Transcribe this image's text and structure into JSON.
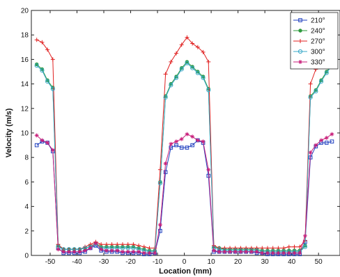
{
  "chart_data": {
    "type": "line",
    "title": "",
    "xlabel": "Location (mm)",
    "ylabel": "Velocity (m/s)",
    "xlim": [
      -57,
      58
    ],
    "ylim": [
      0,
      20
    ],
    "x_ticks": [
      -50,
      -40,
      -30,
      -20,
      -10,
      0,
      10,
      20,
      30,
      40,
      50
    ],
    "y_ticks": [
      0,
      2,
      4,
      6,
      8,
      10,
      12,
      14,
      16,
      18,
      20
    ],
    "legend_position": "top-right",
    "grid": false,
    "x": [
      -55,
      -53,
      -51,
      -49,
      -47,
      -45,
      -43,
      -41,
      -39,
      -37,
      -35,
      -33,
      -31,
      -29,
      -27,
      -25,
      -23,
      -21,
      -19,
      -17,
      -15,
      -13,
      -11,
      -9,
      -7,
      -5,
      -3,
      -1,
      1,
      3,
      5,
      7,
      9,
      11,
      13,
      15,
      17,
      19,
      21,
      23,
      25,
      27,
      29,
      31,
      33,
      35,
      37,
      39,
      41,
      43,
      45,
      47,
      49,
      51,
      53,
      55
    ],
    "series": [
      {
        "name": "210°",
        "color": "#1f3fbf",
        "marker": "square",
        "values": [
          9.0,
          9.3,
          9.2,
          8.5,
          0.6,
          0.2,
          0.2,
          0.2,
          0.2,
          0.3,
          0.6,
          0.8,
          0.4,
          0.3,
          0.3,
          0.3,
          0.2,
          0.2,
          0.2,
          0.2,
          0.1,
          0.1,
          0.2,
          2.0,
          6.8,
          8.8,
          9.0,
          8.8,
          8.8,
          9.0,
          9.4,
          9.2,
          6.5,
          0.3,
          0.3,
          0.3,
          0.3,
          0.3,
          0.3,
          0.3,
          0.3,
          0.2,
          0.2,
          0.1,
          0.1,
          0.1,
          0.1,
          0.1,
          0.1,
          0.1,
          1.1,
          8.0,
          8.9,
          9.2,
          9.2,
          9.3
        ]
      },
      {
        "name": "240°",
        "color": "#2e9a3e",
        "marker": "dot",
        "values": [
          15.6,
          15.2,
          14.3,
          13.7,
          0.8,
          0.5,
          0.5,
          0.5,
          0.5,
          0.6,
          0.7,
          1.0,
          0.7,
          0.7,
          0.7,
          0.7,
          0.7,
          0.7,
          0.7,
          0.6,
          0.5,
          0.4,
          0.4,
          6.0,
          13.0,
          14.0,
          14.6,
          15.3,
          15.8,
          15.4,
          15.0,
          14.6,
          13.6,
          0.7,
          0.6,
          0.5,
          0.5,
          0.5,
          0.5,
          0.5,
          0.5,
          0.5,
          0.4,
          0.4,
          0.4,
          0.4,
          0.4,
          0.4,
          0.4,
          0.4,
          0.8,
          13.0,
          13.5,
          14.3,
          15.0,
          15.6
        ]
      },
      {
        "name": "270°",
        "color": "#e02020",
        "marker": "plus",
        "values": [
          17.6,
          17.4,
          16.8,
          16.0,
          0.9,
          0.5,
          0.5,
          0.5,
          0.5,
          0.7,
          0.9,
          1.1,
          0.9,
          0.9,
          0.9,
          0.9,
          0.9,
          0.9,
          0.9,
          0.8,
          0.7,
          0.6,
          0.6,
          7.0,
          14.8,
          15.8,
          16.5,
          17.2,
          17.8,
          17.3,
          17.0,
          16.6,
          15.8,
          0.8,
          0.6,
          0.6,
          0.6,
          0.6,
          0.6,
          0.6,
          0.6,
          0.6,
          0.6,
          0.6,
          0.6,
          0.6,
          0.6,
          0.7,
          0.7,
          0.7,
          1.2,
          14.0,
          15.2,
          16.2,
          17.0,
          17.7
        ]
      },
      {
        "name": "300°",
        "color": "#3aa8c8",
        "marker": "circle",
        "values": [
          15.5,
          15.1,
          14.2,
          13.6,
          0.7,
          0.5,
          0.5,
          0.5,
          0.5,
          0.6,
          0.7,
          0.9,
          0.6,
          0.6,
          0.6,
          0.6,
          0.6,
          0.6,
          0.6,
          0.5,
          0.4,
          0.3,
          0.3,
          5.9,
          12.9,
          13.9,
          14.5,
          15.2,
          15.7,
          15.3,
          14.9,
          14.5,
          13.5,
          0.6,
          0.5,
          0.4,
          0.4,
          0.4,
          0.4,
          0.4,
          0.4,
          0.4,
          0.3,
          0.3,
          0.3,
          0.3,
          0.3,
          0.3,
          0.3,
          0.3,
          0.7,
          12.9,
          13.4,
          14.2,
          14.9,
          15.5
        ]
      },
      {
        "name": "330°",
        "color": "#c81e7a",
        "marker": "star",
        "values": [
          9.8,
          9.4,
          9.2,
          8.6,
          0.5,
          0.3,
          0.3,
          0.3,
          0.3,
          0.4,
          0.6,
          1.0,
          0.5,
          0.4,
          0.4,
          0.4,
          0.3,
          0.3,
          0.3,
          0.3,
          0.2,
          0.2,
          0.2,
          2.5,
          7.5,
          9.1,
          9.3,
          9.5,
          9.9,
          9.7,
          9.4,
          9.3,
          7.0,
          0.4,
          0.3,
          0.3,
          0.3,
          0.3,
          0.3,
          0.3,
          0.3,
          0.3,
          0.2,
          0.2,
          0.2,
          0.2,
          0.2,
          0.2,
          0.2,
          0.2,
          1.6,
          8.4,
          9.0,
          9.4,
          9.6,
          9.9
        ]
      }
    ]
  }
}
